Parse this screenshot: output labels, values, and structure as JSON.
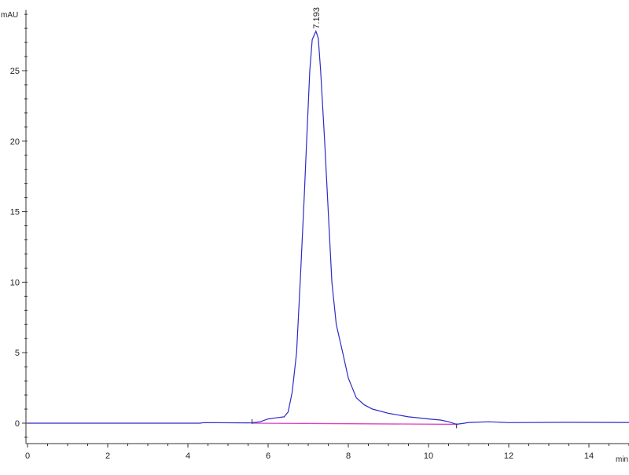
{
  "chart_data": {
    "type": "line",
    "title": "",
    "xlabel": "min",
    "ylabel": "mAU",
    "xlim": [
      0,
      15
    ],
    "ylim": [
      -1.45,
      29.3
    ],
    "x_ticks": [
      0,
      2,
      4,
      6,
      8,
      10,
      12,
      14
    ],
    "x_minor_step": 0.5,
    "y_ticks": [
      0,
      5,
      10,
      15,
      20,
      25
    ],
    "y_minor_step": 1,
    "grid": false,
    "colors": {
      "trace": "#2b2bc8",
      "baseline": "#e040c0"
    },
    "series": [
      {
        "x": [
          0,
          4.3,
          4.4,
          5.5,
          5.6,
          5.8,
          6.0,
          6.2,
          6.4,
          6.5,
          6.6,
          6.71,
          6.8,
          6.9,
          6.96,
          7.04,
          7.1,
          7.193,
          7.25,
          7.31,
          7.41,
          7.5,
          7.59,
          7.7,
          7.86,
          8.0,
          8.2,
          8.4,
          8.6,
          9.0,
          9.5,
          10.0,
          10.3,
          10.5,
          10.7,
          10.85,
          11.0,
          11.5,
          12,
          13.5,
          15
        ],
        "y": [
          0,
          0,
          0.04,
          0.02,
          0.03,
          0.1,
          0.3,
          0.38,
          0.45,
          0.8,
          2.2,
          5,
          10,
          16,
          20,
          25,
          27.2,
          27.8,
          27.3,
          25,
          20,
          15,
          10,
          7,
          5,
          3.2,
          1.8,
          1.3,
          1.0,
          0.7,
          0.45,
          0.3,
          0.22,
          0.1,
          -0.08,
          -0.02,
          0.05,
          0.1,
          0.04,
          0.06,
          0.05
        ]
      }
    ],
    "baseline": {
      "x": [
        5.6,
        10.7
      ],
      "y": [
        0,
        -0.08
      ]
    },
    "annotations": [
      {
        "text": "7.193",
        "x": 7.193,
        "y": 27.8
      }
    ]
  }
}
